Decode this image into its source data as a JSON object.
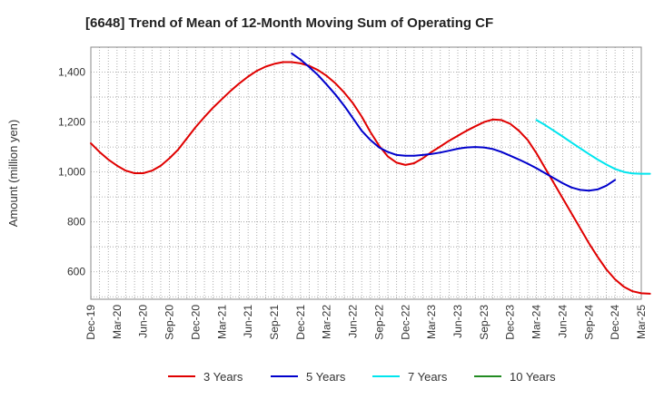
{
  "chart_data": {
    "type": "line",
    "title": "[6648]  Trend of Mean of 12-Month Moving Sum of Operating CF",
    "xlabel": "",
    "ylabel": "Amount (million yen)",
    "ylim": [
      490,
      1500
    ],
    "yticks": [
      600,
      800,
      1000,
      1200,
      1400
    ],
    "ytick_labels": [
      "600",
      "800",
      "1,000",
      "1,200",
      "1,400"
    ],
    "x_start": "Dec-19",
    "x_end": "Mar-25",
    "xtick_labels": [
      "Dec-19",
      "Mar-20",
      "Jun-20",
      "Sep-20",
      "Dec-20",
      "Mar-21",
      "Jun-21",
      "Sep-21",
      "Dec-21",
      "Mar-22",
      "Jun-22",
      "Sep-22",
      "Dec-22",
      "Mar-23",
      "Jun-23",
      "Sep-23",
      "Dec-23",
      "Mar-24",
      "Jun-24",
      "Sep-24",
      "Dec-24",
      "Mar-25"
    ],
    "series": [
      {
        "name": "3 Years",
        "color": "#e00000",
        "start_index": 0,
        "values": [
          1115,
          1080,
          1050,
          1025,
          1005,
          995,
          995,
          1005,
          1025,
          1055,
          1090,
          1135,
          1180,
          1220,
          1258,
          1292,
          1325,
          1355,
          1382,
          1405,
          1422,
          1433,
          1440,
          1440,
          1435,
          1425,
          1408,
          1385,
          1355,
          1318,
          1275,
          1222,
          1160,
          1105,
          1062,
          1037,
          1028,
          1035,
          1055,
          1080,
          1102,
          1125,
          1145,
          1165,
          1183,
          1200,
          1210,
          1208,
          1193,
          1165,
          1128,
          1075,
          1015,
          955,
          895,
          835,
          775,
          715,
          660,
          610,
          570,
          540,
          522,
          514,
          512
        ]
      },
      {
        "name": "5 Years",
        "color": "#0000cc",
        "start_index": 23,
        "values": [
          1475,
          1450,
          1420,
          1388,
          1350,
          1310,
          1265,
          1215,
          1165,
          1128,
          1098,
          1080,
          1068,
          1065,
          1065,
          1068,
          1072,
          1078,
          1085,
          1093,
          1098,
          1100,
          1098,
          1092,
          1080,
          1065,
          1050,
          1033,
          1015,
          995,
          975,
          955,
          938,
          928,
          925,
          930,
          945,
          968
        ]
      },
      {
        "name": "7 Years",
        "color": "#00e5ee",
        "start_index": 51,
        "values": [
          1208,
          1188,
          1165,
          1142,
          1118,
          1095,
          1072,
          1050,
          1030,
          1012,
          1000,
          994,
          993,
          993
        ]
      },
      {
        "name": "10 Years",
        "color": "#228b22",
        "start_index": 0,
        "values": []
      }
    ]
  }
}
